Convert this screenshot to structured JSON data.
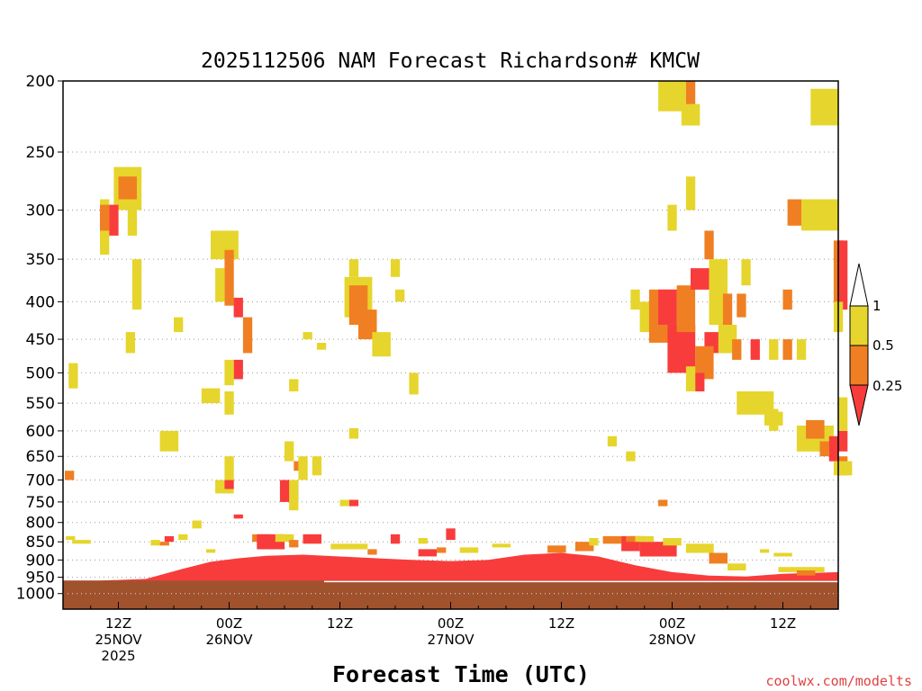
{
  "chart_data": {
    "type": "heatmap",
    "title": "2025112506 NAM Forecast Richardson# KMCW",
    "xlabel": "Forecast Time (UTC)",
    "ylabel": "",
    "credit": "coolwx.com/modelts",
    "x_unit": "forecast hour",
    "xlim": [
      0,
      84
    ],
    "ylim": [
      200,
      1050
    ],
    "yticks": [
      200,
      250,
      300,
      350,
      400,
      450,
      500,
      550,
      600,
      650,
      700,
      750,
      800,
      850,
      900,
      950,
      1000
    ],
    "xticks": [
      {
        "hour": 6,
        "lines": [
          "12Z",
          "25NOV",
          "2025"
        ]
      },
      {
        "hour": 18,
        "lines": [
          "00Z",
          "26NOV"
        ]
      },
      {
        "hour": 30,
        "lines": [
          "12Z"
        ]
      },
      {
        "hour": 42,
        "lines": [
          "00Z",
          "27NOV"
        ]
      },
      {
        "hour": 54,
        "lines": [
          "12Z"
        ]
      },
      {
        "hour": 66,
        "lines": [
          "00Z",
          "28NOV"
        ]
      },
      {
        "hour": 78,
        "lines": [
          "12Z"
        ]
      }
    ],
    "colorbar": {
      "labels": [
        "1",
        "0.5",
        "0.25"
      ],
      "bins": [
        {
          "range": "0.5-1",
          "color": "#e6d52c"
        },
        {
          "range": "0.25-0.5",
          "color": "#ef7f22"
        },
        {
          "range": "<0.25",
          "color": "#f83c3c"
        }
      ]
    },
    "ground": {
      "color": "#a0522d",
      "top_pressure": [
        960,
        960,
        962,
        966,
        970,
        975,
        978,
        980,
        978,
        976,
        973,
        968
      ]
    },
    "pbl_band": {
      "color": "#f83c3c",
      "top_pressure": [
        960,
        960,
        955,
        925,
        905,
        895,
        888,
        885,
        890,
        895,
        900,
        903,
        900,
        885,
        880,
        890,
        915,
        935,
        945,
        948,
        940,
        935
      ],
      "hours": [
        0,
        4,
        9,
        13,
        16,
        19,
        22,
        26,
        30,
        34,
        38,
        42,
        46,
        50,
        54,
        58,
        62,
        66,
        70,
        74,
        78,
        84
      ]
    },
    "cells": [
      {
        "level": "yellow",
        "h": 5.5,
        "p0": 262,
        "p1": 300,
        "w": 3
      },
      {
        "level": "orange",
        "h": 6.0,
        "p0": 270,
        "p1": 290,
        "w": 2
      },
      {
        "level": "yellow",
        "h": 4.0,
        "p0": 290,
        "p1": 345,
        "w": 1
      },
      {
        "level": "orange",
        "h": 4.0,
        "p0": 295,
        "p1": 320,
        "w": 1
      },
      {
        "level": "red",
        "h": 5.0,
        "p0": 295,
        "p1": 325,
        "w": 1
      },
      {
        "level": "yellow",
        "h": 7.0,
        "p0": 295,
        "p1": 325,
        "w": 1
      },
      {
        "level": "yellow",
        "h": 7.5,
        "p0": 350,
        "p1": 410,
        "w": 1
      },
      {
        "level": "yellow",
        "h": 6.8,
        "p0": 440,
        "p1": 470,
        "w": 1
      },
      {
        "level": "yellow",
        "h": 12.0,
        "p0": 420,
        "p1": 440,
        "w": 1
      },
      {
        "level": "yellow",
        "h": 0.6,
        "p0": 485,
        "p1": 525,
        "w": 1
      },
      {
        "level": "orange",
        "h": 0.2,
        "p0": 680,
        "p1": 700,
        "w": 1
      },
      {
        "level": "yellow",
        "h": 16.0,
        "p0": 320,
        "p1": 350,
        "w": 3
      },
      {
        "level": "orange",
        "h": 17.5,
        "p0": 340,
        "p1": 405,
        "w": 1
      },
      {
        "level": "yellow",
        "h": 16.5,
        "p0": 360,
        "p1": 400,
        "w": 1
      },
      {
        "level": "red",
        "h": 18.5,
        "p0": 395,
        "p1": 420,
        "w": 1
      },
      {
        "level": "orange",
        "h": 19.5,
        "p0": 420,
        "p1": 470,
        "w": 1
      },
      {
        "level": "red",
        "h": 18.5,
        "p0": 480,
        "p1": 510,
        "w": 1
      },
      {
        "level": "yellow",
        "h": 17.5,
        "p0": 480,
        "p1": 520,
        "w": 1
      },
      {
        "level": "yellow",
        "h": 17.5,
        "p0": 530,
        "p1": 570,
        "w": 1
      },
      {
        "level": "yellow",
        "h": 15.0,
        "p0": 525,
        "p1": 550,
        "w": 2
      },
      {
        "level": "yellow",
        "h": 10.5,
        "p0": 600,
        "p1": 640,
        "w": 2
      },
      {
        "level": "yellow",
        "h": 16.5,
        "p0": 700,
        "p1": 730,
        "w": 2
      },
      {
        "level": "red",
        "h": 17.5,
        "p0": 700,
        "p1": 720,
        "w": 1
      },
      {
        "level": "yellow",
        "h": 17.5,
        "p0": 650,
        "p1": 700,
        "w": 1
      },
      {
        "level": "red",
        "h": 23.5,
        "p0": 700,
        "p1": 750,
        "w": 2
      },
      {
        "level": "yellow",
        "h": 24.5,
        "p0": 700,
        "p1": 770,
        "w": 1
      },
      {
        "level": "yellow",
        "h": 24.0,
        "p0": 620,
        "p1": 660,
        "w": 1
      },
      {
        "level": "orange",
        "h": 25.0,
        "p0": 660,
        "p1": 680,
        "w": 1
      },
      {
        "level": "yellow",
        "h": 25.5,
        "p0": 650,
        "p1": 700,
        "w": 1
      },
      {
        "level": "yellow",
        "h": 27.0,
        "p0": 650,
        "p1": 690,
        "w": 1
      },
      {
        "level": "yellow",
        "h": 24.5,
        "p0": 510,
        "p1": 530,
        "w": 1
      },
      {
        "level": "yellow",
        "h": 26.0,
        "p0": 440,
        "p1": 450,
        "w": 1
      },
      {
        "level": "yellow",
        "h": 30.5,
        "p0": 370,
        "p1": 420,
        "w": 3
      },
      {
        "level": "orange",
        "h": 31.0,
        "p0": 380,
        "p1": 430,
        "w": 2
      },
      {
        "level": "orange",
        "h": 32.0,
        "p0": 410,
        "p1": 450,
        "w": 2
      },
      {
        "level": "yellow",
        "h": 33.5,
        "p0": 440,
        "p1": 475,
        "w": 2
      },
      {
        "level": "yellow",
        "h": 31.0,
        "p0": 350,
        "p1": 370,
        "w": 1
      },
      {
        "level": "yellow",
        "h": 35.5,
        "p0": 350,
        "p1": 370,
        "w": 1
      },
      {
        "level": "yellow",
        "h": 36.0,
        "p0": 385,
        "p1": 400,
        "w": 1
      },
      {
        "level": "yellow",
        "h": 37.5,
        "p0": 500,
        "p1": 535,
        "w": 1
      },
      {
        "level": "yellow",
        "h": 31.0,
        "p0": 595,
        "p1": 615,
        "w": 1
      },
      {
        "level": "red",
        "h": 31.0,
        "p0": 745,
        "p1": 760,
        "w": 1
      },
      {
        "level": "yellow",
        "h": 30.0,
        "p0": 745,
        "p1": 760,
        "w": 1
      },
      {
        "level": "yellow",
        "h": 27.5,
        "p0": 455,
        "p1": 465,
        "w": 1
      },
      {
        "level": "yellow",
        "h": 59.0,
        "p0": 610,
        "p1": 630,
        "w": 1
      },
      {
        "level": "yellow",
        "h": 61.0,
        "p0": 640,
        "p1": 660,
        "w": 1
      },
      {
        "level": "orange",
        "h": 64.5,
        "p0": 745,
        "p1": 760,
        "w": 1
      },
      {
        "level": "yellow",
        "h": 64.5,
        "p0": 200,
        "p1": 220,
        "w": 3
      },
      {
        "level": "orange",
        "h": 67.5,
        "p0": 200,
        "p1": 220,
        "w": 1
      },
      {
        "level": "yellow",
        "h": 67.0,
        "p0": 215,
        "p1": 230,
        "w": 2
      },
      {
        "level": "yellow",
        "h": 67.5,
        "p0": 270,
        "p1": 300,
        "w": 1
      },
      {
        "level": "yellow",
        "h": 65.5,
        "p0": 295,
        "p1": 320,
        "w": 1
      },
      {
        "level": "orange",
        "h": 69.5,
        "p0": 320,
        "p1": 350,
        "w": 1
      },
      {
        "level": "yellow",
        "h": 61.5,
        "p0": 385,
        "p1": 410,
        "w": 1
      },
      {
        "level": "yellow",
        "h": 62.5,
        "p0": 400,
        "p1": 440,
        "w": 3
      },
      {
        "level": "orange",
        "h": 63.5,
        "p0": 385,
        "p1": 455,
        "w": 3
      },
      {
        "level": "red",
        "h": 64.5,
        "p0": 385,
        "p1": 430,
        "w": 2
      },
      {
        "level": "red",
        "h": 65.5,
        "p0": 430,
        "p1": 500,
        "w": 3
      },
      {
        "level": "orange",
        "h": 66.5,
        "p0": 380,
        "p1": 440,
        "w": 2
      },
      {
        "level": "red",
        "h": 68.0,
        "p0": 360,
        "p1": 385,
        "w": 2
      },
      {
        "level": "red",
        "h": 69.5,
        "p0": 440,
        "p1": 470,
        "w": 2
      },
      {
        "level": "orange",
        "h": 68.5,
        "p0": 460,
        "p1": 510,
        "w": 2
      },
      {
        "level": "red",
        "h": 68.5,
        "p0": 500,
        "p1": 530,
        "w": 1
      },
      {
        "level": "yellow",
        "h": 67.5,
        "p0": 490,
        "p1": 530,
        "w": 1
      },
      {
        "level": "yellow",
        "h": 70.0,
        "p0": 350,
        "p1": 430,
        "w": 2
      },
      {
        "level": "orange",
        "h": 71.5,
        "p0": 390,
        "p1": 440,
        "w": 1
      },
      {
        "level": "yellow",
        "h": 71.0,
        "p0": 430,
        "p1": 470,
        "w": 2
      },
      {
        "level": "orange",
        "h": 73.0,
        "p0": 390,
        "p1": 420,
        "w": 1
      },
      {
        "level": "yellow",
        "h": 73.5,
        "p0": 350,
        "p1": 380,
        "w": 1
      },
      {
        "level": "red",
        "h": 74.5,
        "p0": 450,
        "p1": 480,
        "w": 1
      },
      {
        "level": "orange",
        "h": 72.5,
        "p0": 450,
        "p1": 480,
        "w": 1
      },
      {
        "level": "yellow",
        "h": 73.0,
        "p0": 530,
        "p1": 570,
        "w": 4
      },
      {
        "level": "yellow",
        "h": 76.0,
        "p0": 565,
        "p1": 590,
        "w": 2
      },
      {
        "level": "yellow",
        "h": 76.5,
        "p0": 450,
        "p1": 480,
        "w": 1
      },
      {
        "level": "orange",
        "h": 78.0,
        "p0": 450,
        "p1": 480,
        "w": 1
      },
      {
        "level": "yellow",
        "h": 79.5,
        "p0": 450,
        "p1": 480,
        "w": 1
      },
      {
        "level": "orange",
        "h": 78.0,
        "p0": 385,
        "p1": 410,
        "w": 1
      },
      {
        "level": "orange",
        "h": 78.5,
        "p0": 290,
        "p1": 315,
        "w": 2
      },
      {
        "level": "yellow",
        "h": 80.0,
        "p0": 290,
        "p1": 320,
        "w": 4
      },
      {
        "level": "yellow",
        "h": 81.0,
        "p0": 205,
        "p1": 230,
        "w": 3
      },
      {
        "level": "orange",
        "h": 83.5,
        "p0": 330,
        "p1": 400,
        "w": 1
      },
      {
        "level": "red",
        "h": 84.0,
        "p0": 330,
        "p1": 410,
        "w": 1
      },
      {
        "level": "yellow",
        "h": 83.5,
        "p0": 400,
        "p1": 440,
        "w": 1
      },
      {
        "level": "yellow",
        "h": 79.5,
        "p0": 590,
        "p1": 640,
        "w": 4
      },
      {
        "level": "orange",
        "h": 80.5,
        "p0": 580,
        "p1": 615,
        "w": 2
      },
      {
        "level": "orange",
        "h": 82.0,
        "p0": 620,
        "p1": 650,
        "w": 1
      },
      {
        "level": "red",
        "h": 83.0,
        "p0": 610,
        "p1": 660,
        "w": 1
      },
      {
        "level": "orange",
        "h": 84.0,
        "p0": 650,
        "p1": 690,
        "w": 1
      },
      {
        "level": "red",
        "h": 84.0,
        "p0": 600,
        "p1": 640,
        "w": 1
      },
      {
        "level": "yellow",
        "h": 84.0,
        "p0": 540,
        "p1": 600,
        "w": 1
      },
      {
        "level": "yellow",
        "h": 83.5,
        "p0": 660,
        "p1": 690,
        "w": 2
      },
      {
        "level": "yellow",
        "h": 76.5,
        "p0": 560,
        "p1": 600,
        "w": 1
      }
    ],
    "low_cells": [
      {
        "level": "yellow",
        "h": 1.0,
        "p0": 845,
        "p1": 855,
        "w": 2
      },
      {
        "level": "yellow",
        "h": 0.3,
        "p0": 835,
        "p1": 845,
        "w": 1
      },
      {
        "level": "yellow",
        "h": 9.5,
        "p0": 845,
        "p1": 860,
        "w": 1
      },
      {
        "level": "orange",
        "h": 10.5,
        "p0": 850,
        "p1": 860,
        "w": 1
      },
      {
        "level": "red",
        "h": 11.0,
        "p0": 835,
        "p1": 850,
        "w": 1
      },
      {
        "level": "yellow",
        "h": 12.5,
        "p0": 830,
        "p1": 845,
        "w": 1
      },
      {
        "level": "yellow",
        "h": 14.0,
        "p0": 795,
        "p1": 815,
        "w": 1
      },
      {
        "level": "red",
        "h": 18.5,
        "p0": 780,
        "p1": 790,
        "w": 1
      },
      {
        "level": "yellow",
        "h": 15.5,
        "p0": 870,
        "p1": 880,
        "w": 1
      },
      {
        "level": "orange",
        "h": 20.5,
        "p0": 830,
        "p1": 850,
        "w": 2
      },
      {
        "level": "red",
        "h": 21.0,
        "p0": 830,
        "p1": 870,
        "w": 3
      },
      {
        "level": "yellow",
        "h": 23.0,
        "p0": 830,
        "p1": 850,
        "w": 2
      },
      {
        "level": "orange",
        "h": 24.5,
        "p0": 845,
        "p1": 865,
        "w": 1
      },
      {
        "level": "red",
        "h": 26.0,
        "p0": 830,
        "p1": 855,
        "w": 2
      },
      {
        "level": "yellow",
        "h": 29.0,
        "p0": 855,
        "p1": 870,
        "w": 4
      },
      {
        "level": "orange",
        "h": 33.0,
        "p0": 870,
        "p1": 885,
        "w": 1
      },
      {
        "level": "red",
        "h": 35.5,
        "p0": 830,
        "p1": 855,
        "w": 1
      },
      {
        "level": "yellow",
        "h": 38.5,
        "p0": 840,
        "p1": 855,
        "w": 1
      },
      {
        "level": "orange",
        "h": 40.5,
        "p0": 865,
        "p1": 880,
        "w": 1
      },
      {
        "level": "red",
        "h": 38.5,
        "p0": 870,
        "p1": 890,
        "w": 2
      },
      {
        "level": "red",
        "h": 41.5,
        "p0": 815,
        "p1": 845,
        "w": 1
      },
      {
        "level": "yellow",
        "h": 43.0,
        "p0": 865,
        "p1": 880,
        "w": 2
      },
      {
        "level": "yellow",
        "h": 46.5,
        "p0": 855,
        "p1": 865,
        "w": 2
      },
      {
        "level": "orange",
        "h": 52.5,
        "p0": 860,
        "p1": 880,
        "w": 2
      },
      {
        "level": "orange",
        "h": 55.5,
        "p0": 850,
        "p1": 875,
        "w": 2
      },
      {
        "level": "yellow",
        "h": 57.0,
        "p0": 840,
        "p1": 860,
        "w": 1
      },
      {
        "level": "orange",
        "h": 58.5,
        "p0": 835,
        "p1": 855,
        "w": 2
      },
      {
        "level": "red",
        "h": 60.5,
        "p0": 835,
        "p1": 875,
        "w": 2
      },
      {
        "level": "orange",
        "h": 61.0,
        "p0": 835,
        "p1": 850,
        "w": 2
      },
      {
        "level": "red",
        "h": 62.5,
        "p0": 850,
        "p1": 890,
        "w": 4
      },
      {
        "level": "yellow",
        "h": 62.0,
        "p0": 835,
        "p1": 850,
        "w": 2
      },
      {
        "level": "yellow",
        "h": 65.0,
        "p0": 840,
        "p1": 860,
        "w": 2
      },
      {
        "level": "yellow",
        "h": 67.5,
        "p0": 855,
        "p1": 880,
        "w": 3
      },
      {
        "level": "orange",
        "h": 70.0,
        "p0": 880,
        "p1": 910,
        "w": 2
      },
      {
        "level": "yellow",
        "h": 72.0,
        "p0": 910,
        "p1": 930,
        "w": 2
      },
      {
        "level": "yellow",
        "h": 75.5,
        "p0": 870,
        "p1": 880,
        "w": 1
      },
      {
        "level": "yellow",
        "h": 77.0,
        "p0": 880,
        "p1": 890,
        "w": 2
      },
      {
        "level": "yellow",
        "h": 77.5,
        "p0": 920,
        "p1": 935,
        "w": 5
      },
      {
        "level": "orange",
        "h": 79.5,
        "p0": 930,
        "p1": 945,
        "w": 2
      }
    ]
  }
}
